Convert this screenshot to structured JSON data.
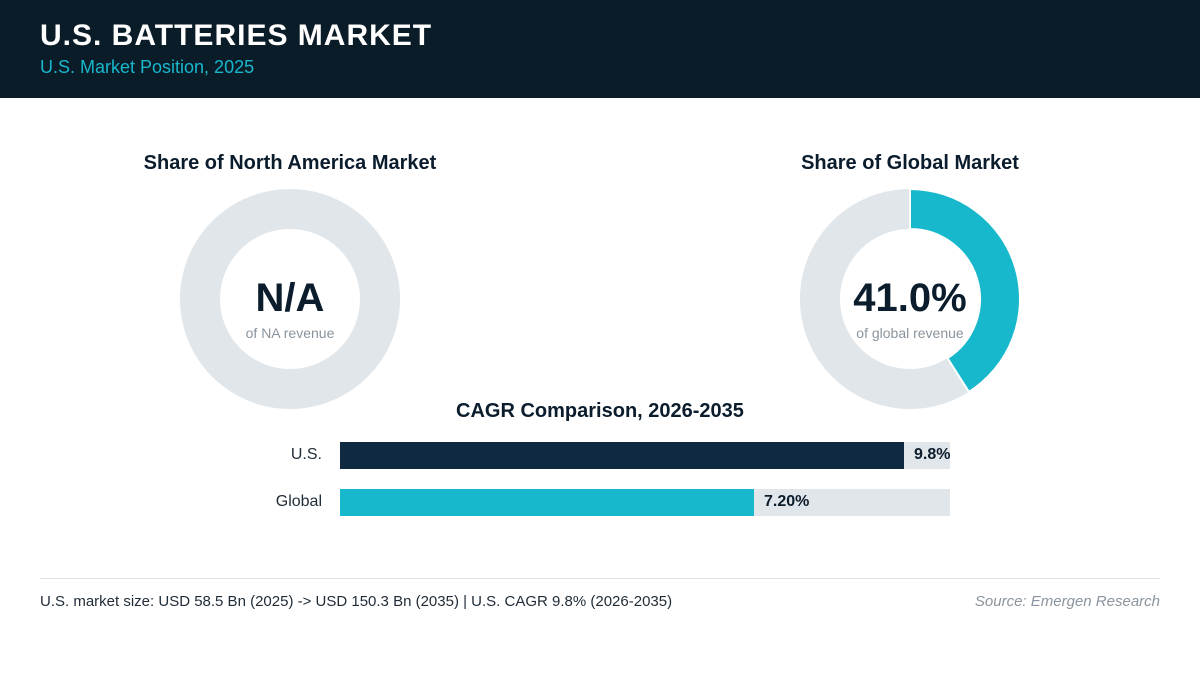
{
  "header": {
    "title": "U.S. BATTERIES MARKET",
    "subtitle": "U.S. Market Position, 2025"
  },
  "colors": {
    "header_bg": "#0b1c29",
    "accent_teal": "#17b8cc",
    "navy": "#0e2940",
    "track_gray": "#e1e6ea"
  },
  "chart_data": [
    {
      "type": "pie",
      "title": "Share of North America Market",
      "center_value": "N/A",
      "center_caption": "of NA revenue",
      "share": null
    },
    {
      "type": "pie",
      "title": "Share of Global Market",
      "center_value": "41.0%",
      "center_caption": "of global revenue",
      "share": 0.41
    },
    {
      "type": "bar",
      "title": "CAGR Comparison, 2026-2035",
      "categories": [
        "U.S.",
        "Global"
      ],
      "values": [
        9.8,
        7.2
      ],
      "value_labels": [
        "9.8%",
        "7.20%"
      ],
      "xlim": [
        0,
        10.6
      ],
      "colors": [
        "#0e2940",
        "#17b8cc"
      ]
    }
  ],
  "footer": {
    "note": "U.S. market size: USD 58.5 Bn (2025) -> USD 150.3 Bn (2035)  |  U.S. CAGR 9.8% (2026-2035)",
    "source": "Source: Emergen Research"
  }
}
